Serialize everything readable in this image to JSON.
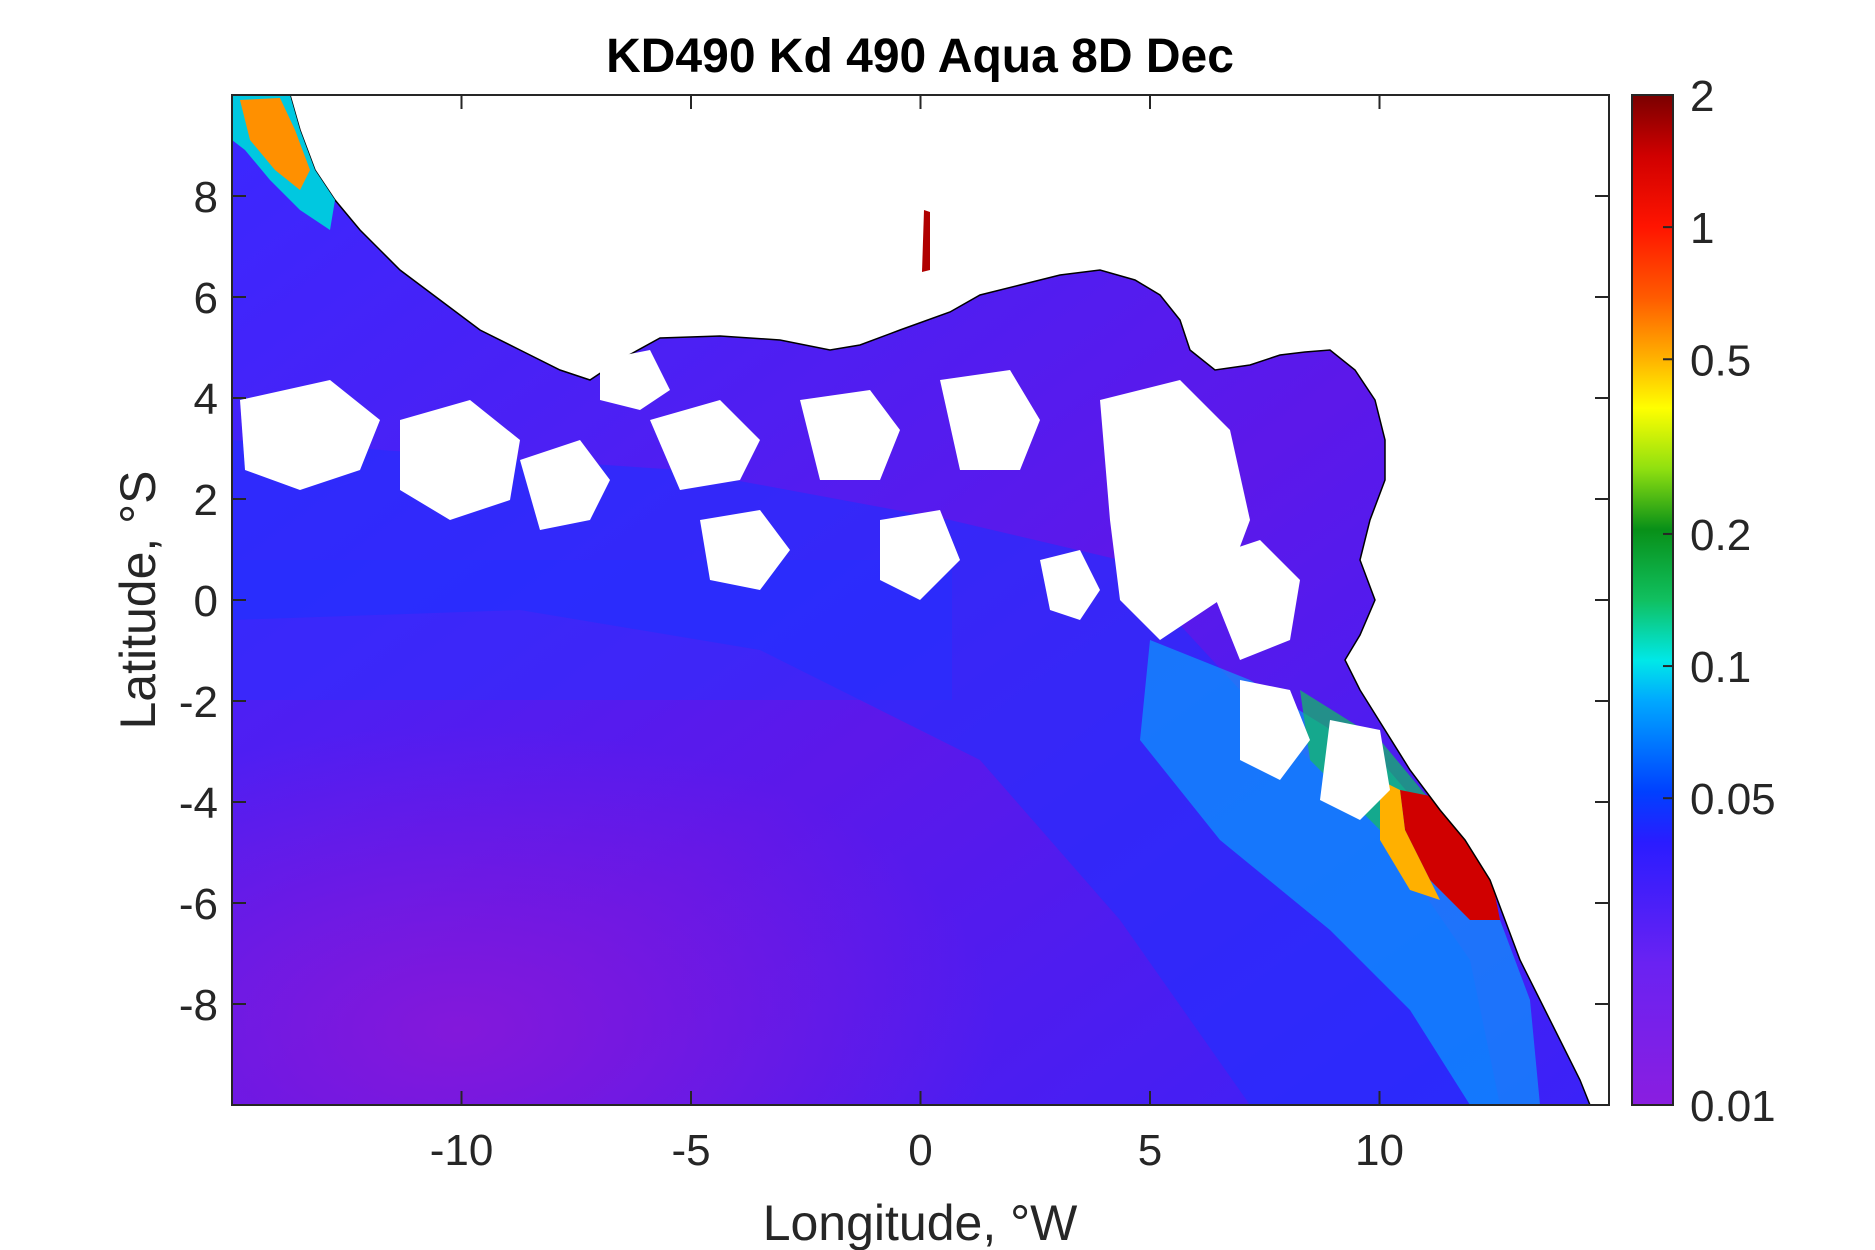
{
  "title": "KD490 Kd 490 Aqua 8D Dec",
  "x_axis": {
    "label": "Longitude, °W",
    "range": [
      -15,
      15
    ],
    "ticks": [
      -10,
      -5,
      0,
      5,
      10
    ],
    "tick_labels": [
      "-10",
      "-5",
      "0",
      "5",
      "10"
    ]
  },
  "y_axis": {
    "label": "Latitude, °S",
    "range": [
      -10,
      10
    ],
    "ticks": [
      8,
      6,
      4,
      2,
      0,
      -2,
      -4,
      -6,
      -8
    ],
    "tick_labels": [
      "8",
      "6",
      "4",
      "2",
      "0",
      "-2",
      "-4",
      "-6",
      "-8"
    ]
  },
  "colorbar": {
    "scale": "log",
    "range": [
      0.01,
      2
    ],
    "ticks": [
      2,
      1,
      0.5,
      0.2,
      0.1,
      0.05,
      0.01
    ],
    "tick_labels": [
      "2",
      "1",
      "0.5",
      "0.2",
      "0.1",
      "0.05",
      "0.01"
    ],
    "colors": [
      "#8a1ee0",
      "#6a22f2",
      "#2a1cff",
      "#0050ff",
      "#00a8ff",
      "#00e8e8",
      "#10c060",
      "#089018",
      "#90e010",
      "#ffff00",
      "#ffb000",
      "#ff5a00",
      "#ff1400",
      "#d00000",
      "#7a0000"
    ]
  },
  "map": {
    "ocean_deep_color": "#6414e6",
    "ocean_blue_color": "#2824ff",
    "coastal_color": "#00e0e0",
    "turbid_color": "#e01010",
    "land_color": "#ffffff",
    "coastline_color": "#000000"
  }
}
